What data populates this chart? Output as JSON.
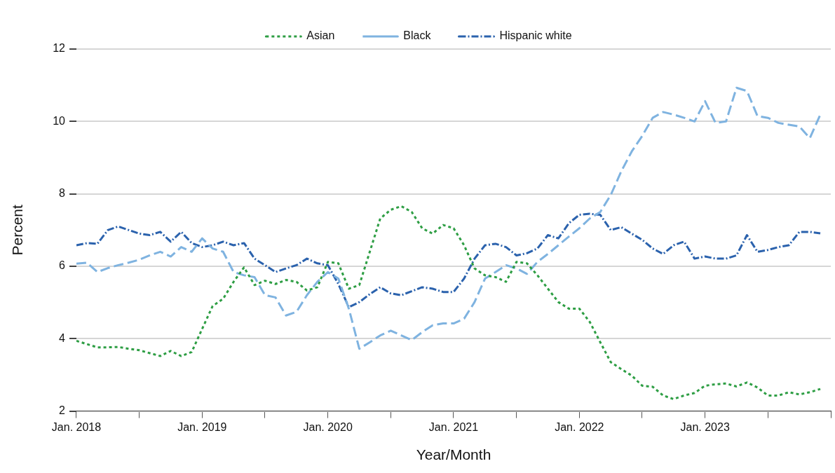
{
  "chart_data": {
    "type": "line",
    "xlabel": "Year/Month",
    "ylabel": "Percent",
    "x": [
      "2018-01",
      "2018-02",
      "2018-03",
      "2018-04",
      "2018-05",
      "2018-06",
      "2018-07",
      "2018-08",
      "2018-09",
      "2018-10",
      "2018-11",
      "2018-12",
      "2019-01",
      "2019-02",
      "2019-03",
      "2019-04",
      "2019-05",
      "2019-06",
      "2019-07",
      "2019-08",
      "2019-09",
      "2019-10",
      "2019-11",
      "2019-12",
      "2020-01",
      "2020-02",
      "2020-03",
      "2020-04",
      "2020-05",
      "2020-06",
      "2020-07",
      "2020-08",
      "2020-09",
      "2020-10",
      "2020-11",
      "2020-12",
      "2021-01",
      "2021-02",
      "2021-03",
      "2021-04",
      "2021-05",
      "2021-06",
      "2021-07",
      "2021-08",
      "2021-09",
      "2021-10",
      "2021-11",
      "2021-12",
      "2022-01",
      "2022-02",
      "2022-03",
      "2022-04",
      "2022-05",
      "2022-06",
      "2022-07",
      "2022-08",
      "2022-09",
      "2022-10",
      "2022-11",
      "2022-12",
      "2023-01",
      "2023-02",
      "2023-03",
      "2023-04",
      "2023-05",
      "2023-06",
      "2023-07",
      "2023-08",
      "2023-09",
      "2023-10",
      "2023-11",
      "2023-12"
    ],
    "series": [
      {
        "name": "Asian",
        "color": "#2e9e44",
        "line_style": "dotted",
        "values": [
          3.94,
          3.85,
          3.76,
          3.76,
          3.77,
          3.72,
          3.68,
          3.6,
          3.52,
          3.66,
          3.52,
          3.63,
          4.27,
          4.9,
          5.1,
          5.57,
          5.97,
          5.48,
          5.6,
          5.51,
          5.62,
          5.57,
          5.33,
          5.42,
          6.12,
          6.08,
          5.38,
          5.48,
          6.4,
          7.32,
          7.56,
          7.66,
          7.5,
          7.05,
          6.9,
          7.14,
          7.05,
          6.58,
          5.94,
          5.75,
          5.7,
          5.57,
          6.12,
          6.08,
          5.75,
          5.38,
          5.01,
          4.83,
          4.83,
          4.46,
          3.9,
          3.35,
          3.16,
          2.98,
          2.7,
          2.67,
          2.43,
          2.33,
          2.43,
          2.5,
          2.7,
          2.74,
          2.76,
          2.68,
          2.79,
          2.65,
          2.43,
          2.43,
          2.52,
          2.46,
          2.52,
          2.61
        ]
      },
      {
        "name": "Black",
        "color": "#7fb3e0",
        "line_style": "dashed",
        "values": [
          6.07,
          6.1,
          5.84,
          5.95,
          6.03,
          6.1,
          6.18,
          6.3,
          6.4,
          6.27,
          6.53,
          6.4,
          6.77,
          6.49,
          6.4,
          5.84,
          5.75,
          5.7,
          5.2,
          5.14,
          4.64,
          4.74,
          5.2,
          5.57,
          5.84,
          5.66,
          4.83,
          3.72,
          3.9,
          4.09,
          4.22,
          4.09,
          3.96,
          4.18,
          4.37,
          4.42,
          4.42,
          4.55,
          5.01,
          5.66,
          5.84,
          6.03,
          5.94,
          5.79,
          6.12,
          6.34,
          6.58,
          6.82,
          7.05,
          7.32,
          7.5,
          7.97,
          8.62,
          9.17,
          9.6,
          10.1,
          10.26,
          10.19,
          10.1,
          10.0,
          10.56,
          9.96,
          10.0,
          10.93,
          10.84,
          10.15,
          10.1,
          9.96,
          9.91,
          9.86,
          9.54,
          10.19
        ]
      },
      {
        "name": "Hispanic white",
        "color": "#2b62ad",
        "line_style": "dashdot",
        "values": [
          6.58,
          6.64,
          6.62,
          7.0,
          7.1,
          7.0,
          6.9,
          6.86,
          6.95,
          6.68,
          6.95,
          6.64,
          6.53,
          6.58,
          6.68,
          6.58,
          6.64,
          6.21,
          6.03,
          5.84,
          5.94,
          6.03,
          6.21,
          6.08,
          6.03,
          5.51,
          4.87,
          5.01,
          5.23,
          5.42,
          5.25,
          5.2,
          5.31,
          5.42,
          5.38,
          5.29,
          5.29,
          5.66,
          6.21,
          6.58,
          6.62,
          6.53,
          6.3,
          6.36,
          6.49,
          6.86,
          6.77,
          7.19,
          7.42,
          7.45,
          7.42,
          7.0,
          7.08,
          6.9,
          6.73,
          6.49,
          6.34,
          6.58,
          6.68,
          6.21,
          6.27,
          6.21,
          6.21,
          6.3,
          6.86,
          6.4,
          6.45,
          6.53,
          6.58,
          6.95,
          6.95,
          6.91
        ]
      }
    ],
    "xlim": [
      "2018-01",
      "2024-01"
    ],
    "xticks": [
      {
        "value": "2018-01",
        "label": "Jan. 2018"
      },
      {
        "value": "2018-07",
        "label": null
      },
      {
        "value": "2019-01",
        "label": "Jan. 2019"
      },
      {
        "value": "2019-07",
        "label": null
      },
      {
        "value": "2020-01",
        "label": "Jan. 2020"
      },
      {
        "value": "2020-07",
        "label": null
      },
      {
        "value": "2021-01",
        "label": "Jan. 2021"
      },
      {
        "value": "2021-07",
        "label": null
      },
      {
        "value": "2022-01",
        "label": "Jan. 2022"
      },
      {
        "value": "2022-07",
        "label": null
      },
      {
        "value": "2023-01",
        "label": "Jan. 2023"
      },
      {
        "value": "2023-07",
        "label": null
      },
      {
        "value": "2024-01",
        "label": null
      }
    ],
    "ylim": [
      2,
      12
    ],
    "yticks": [
      2,
      4,
      6,
      8,
      10,
      12
    ],
    "grid": "y",
    "legend": "top",
    "marker": "none"
  }
}
